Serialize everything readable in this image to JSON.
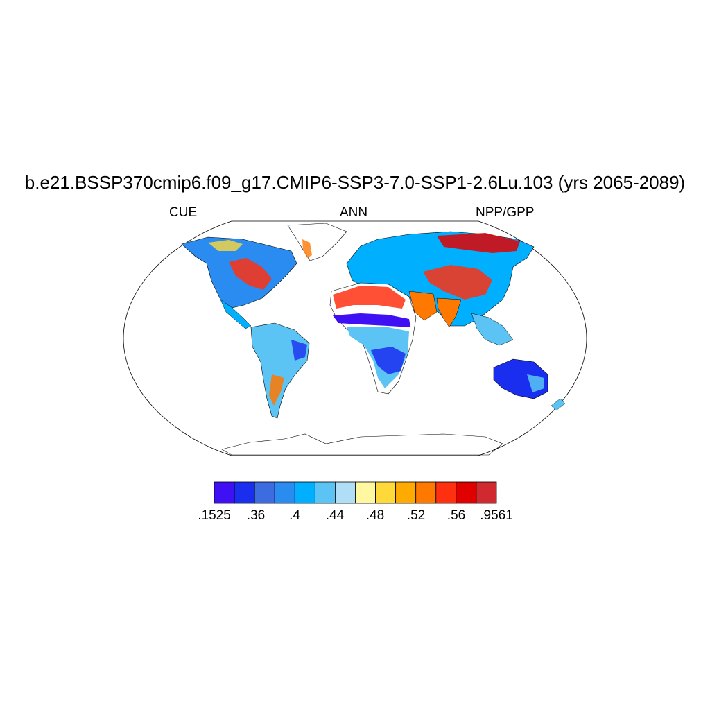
{
  "title": "b.e21.BSSP370cmip6.f09_g17.CMIP6-SSP3-7.0-SSP1-2.6Lu.103 (yrs 2065-2089)",
  "left_label": "CUE",
  "center_label": "ANN",
  "right_label": "NPP/GPP",
  "colorbar": {
    "colors": [
      "#4010f5",
      "#1a2eef",
      "#3c6ce0",
      "#2a8cf0",
      "#00b0ff",
      "#5bc4f5",
      "#b0def6",
      "#fff8a0",
      "#ffd83a",
      "#ffaa00",
      "#ff7800",
      "#ff3010",
      "#e00000",
      "#d02a30"
    ],
    "labels": [
      ".1525",
      ".36",
      ".4",
      ".44",
      ".48",
      ".52",
      ".56",
      ".9561"
    ]
  }
}
